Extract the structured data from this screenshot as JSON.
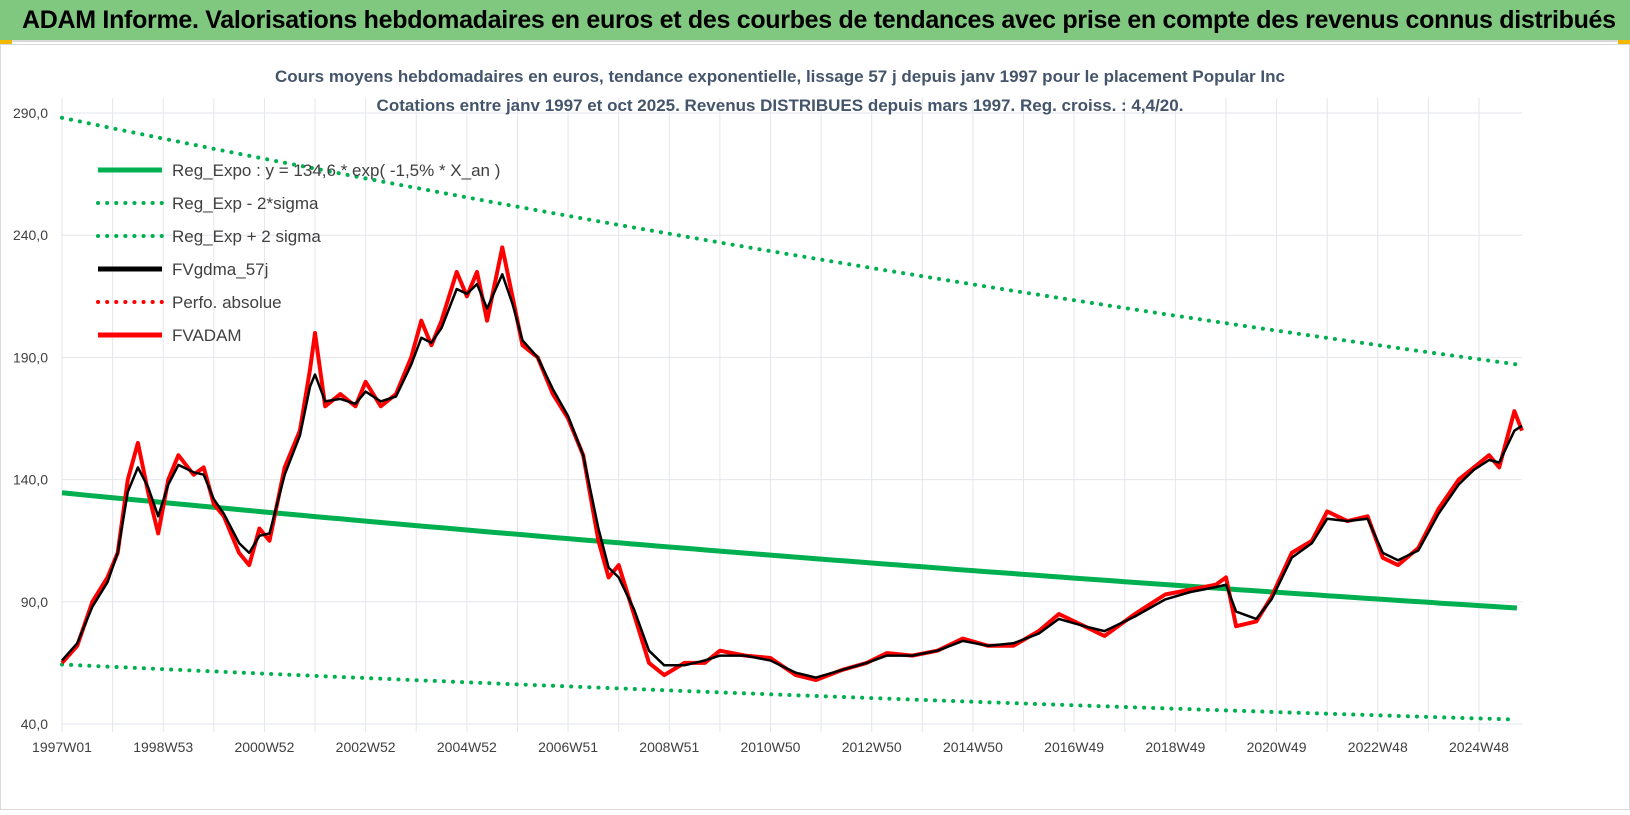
{
  "header": {
    "title": "ADAM Informe. Valorisations hebdomadaires en euros et des courbes de tendances avec prise en compte des revenus connus distribués"
  },
  "chart_data": {
    "type": "line",
    "title": [
      "Cours moyens hebdomadaires en euros, tendance exponentielle, lissage 57 j depuis janv 1997 pour le placement Popular Inc",
      "Cotations entre janv 1997 et oct 2025. Revenus DISTRIBUES depuis mars 1997. Reg. croiss. : 4,4/20."
    ],
    "xlabel": "",
    "ylabel": "",
    "ylim": [
      40,
      290
    ],
    "xlim": [
      1997.0,
      2025.85
    ],
    "yticks": [
      "40,0",
      "90,0",
      "140,0",
      "190,0",
      "240,0",
      "290,0"
    ],
    "ytick_values": [
      40,
      90,
      140,
      190,
      240,
      290
    ],
    "xticks": [
      "1997W01",
      "1998W53",
      "2000W52",
      "2002W52",
      "2004W52",
      "2006W51",
      "2008W51",
      "2010W50",
      "2012W50",
      "2014W50",
      "2016W49",
      "2018W49",
      "2020W49",
      "2022W48",
      "2024W48"
    ],
    "xtick_values": [
      1997.0,
      1999.0,
      2001.0,
      2003.0,
      2005.0,
      2007.0,
      2009.0,
      2011.0,
      2013.0,
      2015.0,
      2017.0,
      2019.0,
      2021.0,
      2023.0,
      2025.0
    ],
    "grid": true,
    "legend_position": "top-left",
    "regression": {
      "a": 134.6,
      "rate": -0.015,
      "upper_factor": 2.14,
      "lower_factor": 0.478
    },
    "legend": [
      {
        "label": "Reg_Expo : y = 134,6 * exp( -1,5% *  X_an )",
        "color": "#00b050",
        "style": "solid"
      },
      {
        "label": "Reg_Exp - 2*sigma",
        "color": "#00b050",
        "style": "dotted"
      },
      {
        "label": "Reg_Exp + 2 sigma",
        "color": "#00b050",
        "style": "dotted"
      },
      {
        "label": "FVgdma_57j",
        "color": "#000000",
        "style": "solid"
      },
      {
        "label": "Perfo. absolue",
        "color": "#ff0000",
        "style": "dotted"
      },
      {
        "label": "FVADAM",
        "color": "#ff0000",
        "style": "solid"
      }
    ],
    "x": [
      1997.0,
      1997.3,
      1997.6,
      1997.9,
      1998.1,
      1998.3,
      1998.5,
      1998.7,
      1998.9,
      1999.1,
      1999.3,
      1999.6,
      1999.8,
      2000.0,
      2000.2,
      2000.5,
      2000.7,
      2000.9,
      2001.1,
      2001.4,
      2001.7,
      2001.9,
      2002.0,
      2002.2,
      2002.5,
      2002.8,
      2003.0,
      2003.3,
      2003.6,
      2003.9,
      2004.1,
      2004.3,
      2004.5,
      2004.8,
      2005.0,
      2005.2,
      2005.4,
      2005.7,
      2005.9,
      2006.1,
      2006.4,
      2006.7,
      2007.0,
      2007.3,
      2007.6,
      2007.8,
      2008.0,
      2008.3,
      2008.6,
      2008.9,
      2009.3,
      2009.7,
      2010.0,
      2010.5,
      2011.0,
      2011.5,
      2011.9,
      2012.4,
      2012.9,
      2013.3,
      2013.8,
      2014.3,
      2014.8,
      2015.3,
      2015.8,
      2016.3,
      2016.7,
      2017.2,
      2017.6,
      2018.2,
      2018.8,
      2019.3,
      2019.8,
      2020.0,
      2020.2,
      2020.6,
      2020.9,
      2021.3,
      2021.7,
      2022.0,
      2022.4,
      2022.8,
      2023.1,
      2023.4,
      2023.8,
      2024.2,
      2024.6,
      2024.9,
      2025.2,
      2025.4,
      2025.7,
      2025.85
    ],
    "series": [
      {
        "name": "FVADAM",
        "values": [
          65,
          72,
          90,
          100,
          110,
          140,
          155,
          135,
          118,
          140,
          150,
          142,
          145,
          130,
          125,
          110,
          105,
          120,
          115,
          145,
          160,
          185,
          200,
          170,
          175,
          170,
          180,
          170,
          175,
          190,
          205,
          195,
          205,
          225,
          215,
          225,
          205,
          235,
          215,
          195,
          190,
          175,
          165,
          150,
          115,
          100,
          105,
          85,
          65,
          60,
          65,
          65,
          70,
          68,
          67,
          60,
          58,
          62,
          65,
          69,
          68,
          70,
          75,
          72,
          72,
          78,
          85,
          80,
          76,
          85,
          93,
          95,
          97,
          100,
          80,
          82,
          92,
          110,
          115,
          127,
          123,
          125,
          108,
          105,
          112,
          128,
          140,
          145,
          150,
          145,
          168,
          160
        ]
      },
      {
        "name": "FVgdma_57j",
        "values": [
          66,
          73,
          88,
          98,
          110,
          135,
          145,
          137,
          125,
          138,
          146,
          143,
          142,
          132,
          126,
          114,
          110,
          117,
          118,
          142,
          158,
          178,
          183,
          172,
          173,
          171,
          176,
          172,
          174,
          187,
          198,
          196,
          202,
          218,
          216,
          220,
          210,
          224,
          212,
          197,
          190,
          177,
          166,
          150,
          120,
          104,
          100,
          87,
          70,
          64,
          64,
          66,
          68,
          68,
          66,
          61,
          59,
          62,
          65,
          68,
          68,
          70,
          74,
          72,
          73,
          77,
          83,
          80,
          78,
          84,
          91,
          94,
          96,
          97,
          86,
          83,
          91,
          108,
          114,
          124,
          123,
          124,
          110,
          107,
          111,
          126,
          138,
          144,
          148,
          147,
          160,
          162
        ]
      }
    ]
  }
}
